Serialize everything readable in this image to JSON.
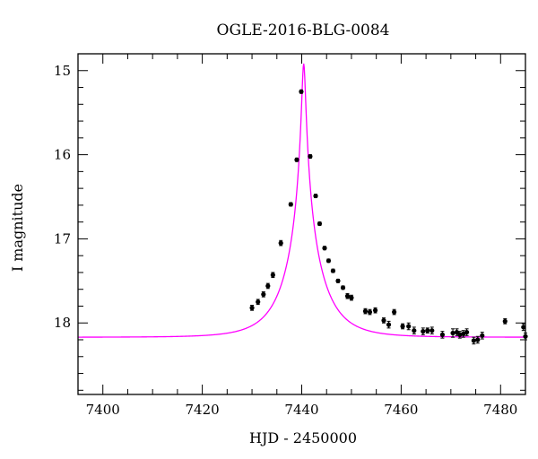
{
  "chart_data": {
    "type": "scatter",
    "title": "OGLE-2016-BLG-0084",
    "xlabel": "HJD - 2450000",
    "ylabel": "I magnitude",
    "xlim": [
      7395,
      7485
    ],
    "ylim": [
      18.85,
      14.8
    ],
    "y_inverted": true,
    "x_ticks": [
      7400,
      7420,
      7440,
      7460,
      7480
    ],
    "y_ticks": [
      15,
      16,
      17,
      18
    ],
    "grid": false,
    "legend": "none",
    "colors": {
      "model": "#ff00ff",
      "points": "#000000"
    },
    "model": {
      "t0": 7440.4,
      "u0": 0.05,
      "tE": 7.0,
      "base_mag": 18.17
    },
    "series": [
      {
        "kind": "points",
        "x": [
          7430.0,
          7431.2,
          7432.3,
          7433.2,
          7434.2,
          7435.8,
          7437.8,
          7439.0,
          7439.9,
          7441.7,
          7442.8,
          7443.6,
          7444.6,
          7445.4,
          7446.3,
          7447.3,
          7448.3,
          7449.2,
          7450.0,
          7452.8,
          7453.7,
          7454.8,
          7456.5,
          7457.5,
          7458.6,
          7460.3,
          7461.5,
          7462.6,
          7464.4,
          7465.3,
          7466.2,
          7468.3,
          7470.4,
          7471.2,
          7471.8,
          7472.5,
          7473.2,
          7474.6,
          7475.4,
          7476.3,
          7480.9,
          7484.6,
          7485.0
        ],
        "y": [
          17.82,
          17.75,
          17.66,
          17.56,
          17.43,
          17.05,
          16.59,
          16.06,
          15.25,
          16.02,
          16.49,
          16.82,
          17.11,
          17.26,
          17.38,
          17.5,
          17.58,
          17.68,
          17.7,
          17.86,
          17.87,
          17.85,
          17.97,
          18.02,
          17.87,
          18.04,
          18.04,
          18.09,
          18.1,
          18.09,
          18.09,
          18.14,
          18.12,
          18.11,
          18.14,
          18.13,
          18.11,
          18.21,
          18.2,
          18.15,
          17.98,
          18.05,
          18.16
        ],
        "yerr": [
          0.03,
          0.03,
          0.03,
          0.03,
          0.03,
          0.03,
          0.02,
          0.02,
          0.02,
          0.02,
          0.02,
          0.02,
          0.02,
          0.02,
          0.02,
          0.02,
          0.02,
          0.03,
          0.03,
          0.03,
          0.03,
          0.03,
          0.03,
          0.04,
          0.03,
          0.03,
          0.04,
          0.04,
          0.04,
          0.03,
          0.04,
          0.04,
          0.05,
          0.04,
          0.04,
          0.04,
          0.04,
          0.04,
          0.04,
          0.04,
          0.03,
          0.04,
          0.04
        ]
      }
    ]
  }
}
